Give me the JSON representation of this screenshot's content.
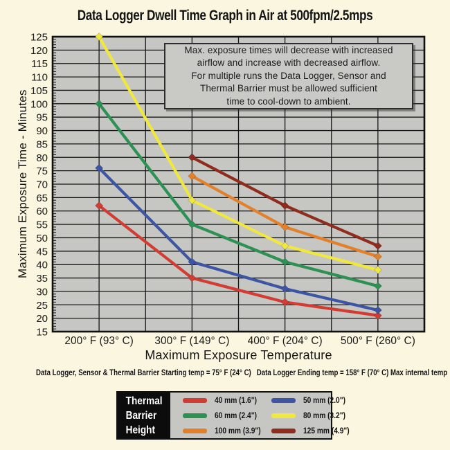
{
  "page": {
    "background_color": "#fbf6e0",
    "plot_background_color": "#c6c6c3"
  },
  "annotation": {
    "text": "Max. exposure times will decrease with increased\nairflow and increase with decreased airflow.\nFor multiple runs the Data Logger, Sensor and\nThermal Barrier must be allowed sufficient\ntime to cool-down to ambient."
  },
  "footnote": "Data Logger, Sensor & Thermal Barrier Starting temp = 75° F (24° C)   Data Logger Ending temp = 158° F (70° C) Max internal temp",
  "legend": {
    "title": "Thermal\nBarrier\nHeight"
  },
  "chart_data": {
    "type": "line",
    "title": "Data Logger Dwell Time Graph in Air at 500fpm/2.5mps",
    "categories": [
      "200° F (93° C)",
      "300° F (149° C)",
      "400° F (204° C)",
      "500° F (260° C)"
    ],
    "xlabel": "Maximum Exposure Temperature",
    "ylabel": "Maximum Exposure Time - Minutes",
    "ylim": [
      15,
      125
    ],
    "ytick_step": 5,
    "grid": true,
    "marker": "diamond",
    "legend_position": "bottom",
    "series": [
      {
        "name": "40 mm (1.6\")",
        "color": "#d23c32",
        "values": [
          62,
          35,
          26,
          21
        ]
      },
      {
        "name": "50 mm (2.0\")",
        "color": "#3d55a4",
        "values": [
          76,
          41,
          31,
          23
        ]
      },
      {
        "name": "60 mm (2.4\")",
        "color": "#2c9153",
        "values": [
          100,
          55,
          41,
          32
        ]
      },
      {
        "name": "80 mm (3.2\")",
        "color": "#f0e83e",
        "values": [
          125,
          64,
          47,
          38
        ]
      },
      {
        "name": "100 mm (3.9\")",
        "color": "#e3802c",
        "values": [
          null,
          73,
          54,
          43
        ]
      },
      {
        "name": "125 mm (4.9\")",
        "color": "#8f2c1e",
        "values": [
          null,
          80,
          62,
          47
        ]
      }
    ]
  }
}
